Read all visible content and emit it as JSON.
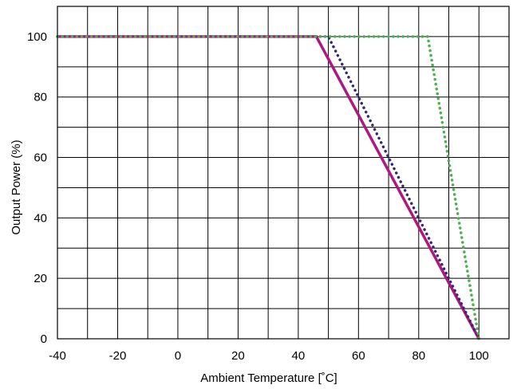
{
  "chart_data": {
    "type": "line",
    "title": "",
    "xlabel": "Ambient Temperature [˚C]",
    "ylabel": "Output Power (%)",
    "xlim": [
      -40,
      110
    ],
    "ylim": [
      0,
      110
    ],
    "x_ticks": [
      -40,
      -20,
      0,
      20,
      40,
      60,
      80,
      100
    ],
    "y_ticks": [
      0,
      20,
      40,
      60,
      80,
      100
    ],
    "x_tick_labels": [
      "-40",
      "-20",
      "0",
      "20",
      "40",
      "60",
      "80",
      "100"
    ],
    "y_tick_labels": [
      "0",
      "20",
      "40",
      "60",
      "80",
      "100"
    ],
    "x_grid_step": 10,
    "y_grid_step": 10,
    "grid": true,
    "legend": "none",
    "series": [
      {
        "color": "#b0187e",
        "style": "solid",
        "x": [
          -40,
          46,
          100
        ],
        "y": [
          100,
          100,
          0
        ]
      },
      {
        "color": "#2e2a78",
        "style": "dotted",
        "x": [
          -40,
          50,
          100
        ],
        "y": [
          100,
          100,
          0
        ]
      },
      {
        "color": "#4caf50",
        "style": "dotted",
        "x": [
          -40,
          83,
          100
        ],
        "y": [
          100,
          100,
          0
        ]
      }
    ]
  }
}
